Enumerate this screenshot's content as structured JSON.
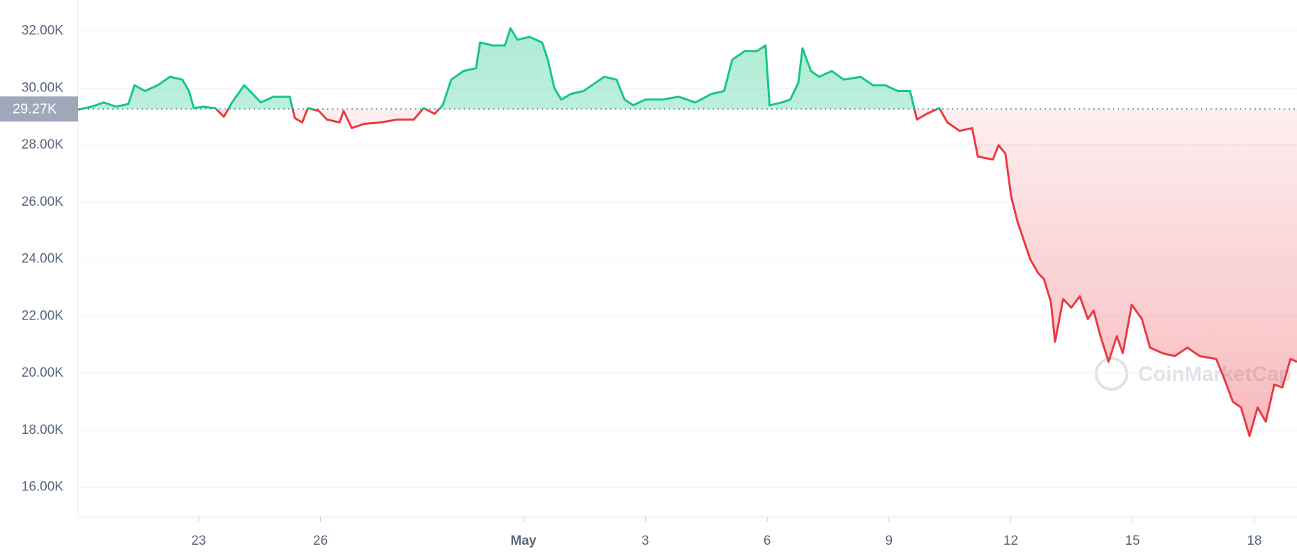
{
  "chart_data": {
    "type": "baseline-line",
    "watermark": "CoinMarketCap",
    "baseline": {
      "value": 29270,
      "label": "29.27K"
    },
    "up_color": "#16c784",
    "down_color": "#ea3943",
    "grid": true,
    "xlim": [
      20.03,
      50.05
    ],
    "ylim": [
      14960,
      33094
    ],
    "xticks": [
      {
        "value": 23,
        "label": "23"
      },
      {
        "value": 26,
        "label": "26"
      },
      {
        "value": 31,
        "label": "May"
      },
      {
        "value": 34,
        "label": "3"
      },
      {
        "value": 37,
        "label": "6"
      },
      {
        "value": 40,
        "label": "9"
      },
      {
        "value": 43,
        "label": "12"
      },
      {
        "value": 46,
        "label": "15"
      },
      {
        "value": 49,
        "label": "18"
      }
    ],
    "yticks": [
      {
        "value": 16000,
        "label": "16.00K"
      },
      {
        "value": 18000,
        "label": "18.00K"
      },
      {
        "value": 20000,
        "label": "20.00K"
      },
      {
        "value": 22000,
        "label": "22.00K"
      },
      {
        "value": 24000,
        "label": "24.00K"
      },
      {
        "value": 26000,
        "label": "26.00K"
      },
      {
        "value": 28000,
        "label": "28.00K"
      },
      {
        "value": 30000,
        "label": "30.00K"
      },
      {
        "value": 32000,
        "label": "32.00K"
      }
    ],
    "x": [
      20.03,
      20.36,
      20.66,
      20.97,
      21.27,
      21.42,
      21.68,
      21.99,
      22.29,
      22.6,
      22.76,
      22.88,
      23.11,
      23.41,
      23.62,
      23.82,
      24.12,
      24.33,
      24.53,
      24.84,
      25.24,
      25.37,
      25.55,
      25.69,
      25.96,
      26.16,
      26.47,
      26.57,
      26.77,
      27.08,
      27.49,
      27.89,
      28.3,
      28.54,
      28.81,
      29.01,
      29.22,
      29.52,
      29.83,
      29.93,
      30.24,
      30.54,
      30.68,
      30.85,
      31.15,
      31.46,
      31.6,
      31.76,
      31.93,
      32.17,
      32.48,
      32.68,
      32.99,
      33.29,
      33.49,
      33.7,
      34.0,
      34.41,
      34.82,
      35.23,
      35.63,
      35.94,
      36.14,
      36.45,
      36.75,
      36.96,
      37.06,
      37.36,
      37.57,
      37.77,
      37.87,
      38.08,
      38.28,
      38.59,
      38.89,
      39.3,
      39.61,
      39.91,
      40.22,
      40.52,
      40.69,
      40.93,
      41.24,
      41.44,
      41.74,
      42.05,
      42.19,
      42.56,
      42.7,
      42.87,
      43.01,
      43.17,
      43.48,
      43.68,
      43.82,
      43.99,
      44.09,
      44.29,
      44.49,
      44.7,
      44.9,
      45.04,
      45.21,
      45.41,
      45.61,
      45.76,
      45.98,
      46.23,
      46.43,
      46.74,
      47.04,
      47.35,
      47.65,
      48.06,
      48.26,
      48.47,
      48.67,
      48.88,
      49.08,
      49.28,
      49.49,
      49.69,
      49.89,
      50.05
    ],
    "values": [
      29250,
      29350,
      29500,
      29350,
      29450,
      30100,
      29900,
      30100,
      30400,
      30300,
      29900,
      29300,
      29350,
      29300,
      29000,
      29500,
      30100,
      29800,
      29500,
      29700,
      29700,
      28950,
      28800,
      29300,
      29200,
      28900,
      28800,
      29200,
      28600,
      28750,
      28800,
      28900,
      28900,
      29300,
      29100,
      29400,
      30300,
      30600,
      30700,
      31600,
      31500,
      31500,
      32100,
      31700,
      31800,
      31600,
      31000,
      30000,
      29600,
      29800,
      29900,
      30100,
      30400,
      30300,
      29600,
      29400,
      29600,
      29600,
      29700,
      29500,
      29800,
      29900,
      31000,
      31300,
      31300,
      31500,
      29400,
      29500,
      29600,
      30200,
      31400,
      30600,
      30400,
      30600,
      30300,
      30400,
      30100,
      30100,
      29900,
      29900,
      28900,
      29100,
      29300,
      28800,
      28500,
      28600,
      27600,
      27500,
      28000,
      27700,
      26200,
      25300,
      24000,
      23500,
      23300,
      22500,
      21100,
      22600,
      22300,
      22700,
      21900,
      22200,
      21300,
      20400,
      21300,
      20700,
      22400,
      21900,
      20900,
      20700,
      20600,
      20900,
      20600,
      20500,
      19800,
      19000,
      18800,
      17800,
      18800,
      18300,
      19600,
      19500,
      20500,
      20400
    ]
  }
}
